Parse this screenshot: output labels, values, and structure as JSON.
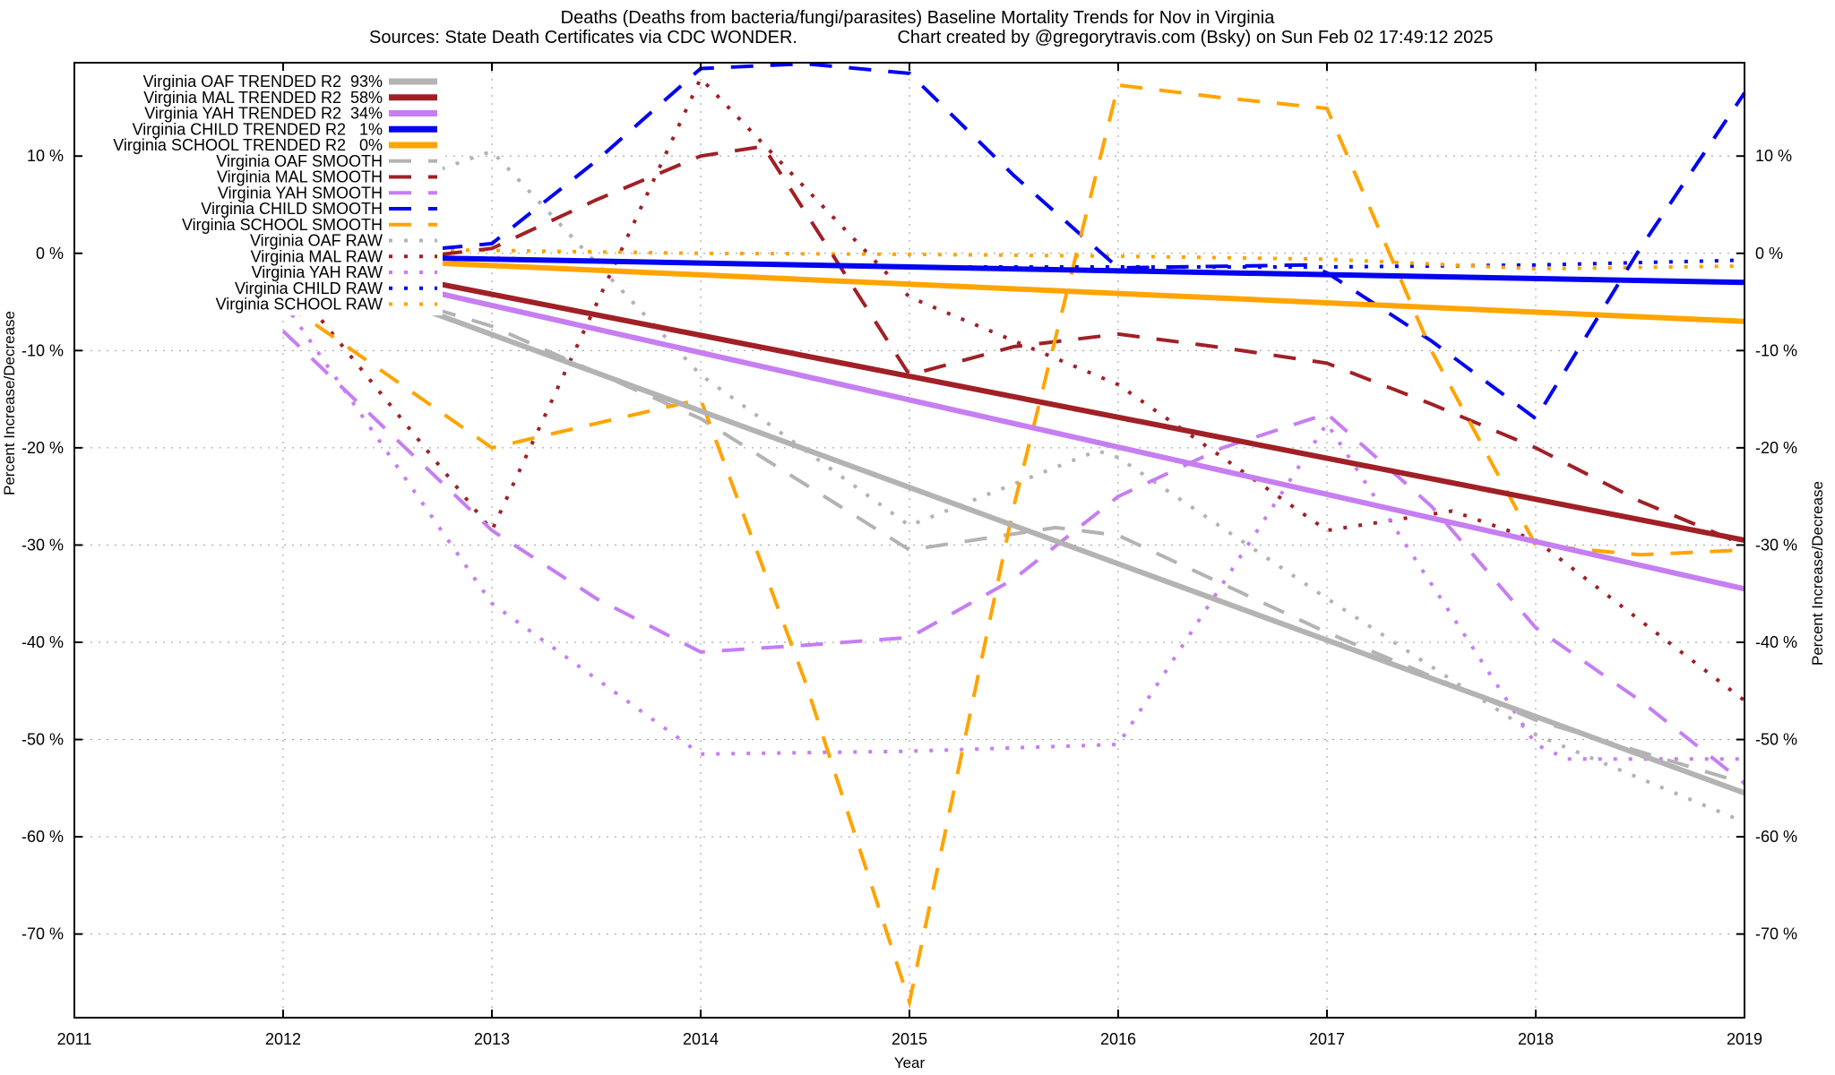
{
  "header": {
    "title": "Deaths (Deaths from bacteria/fungi/parasites)  Baseline Mortality Trends for Nov in Virginia",
    "subtitle_left": "Sources: State Death Certificates via CDC WONDER.",
    "subtitle_right": "Chart created by @gregorytravis.com (Bsky) on Sun Feb 02 17:49:12 2025"
  },
  "chart_data": {
    "type": "line",
    "title": "Deaths (Deaths from bacteria/fungi/parasites)  Baseline Mortality Trends for Nov in Virginia",
    "subtitle_left": "Sources: State Death Certificates via CDC WONDER.",
    "subtitle_right": "Chart created by @gregorytravis.com (Bsky) on Sun Feb 02 17:49:12 2025",
    "xlabel": "Year",
    "ylabel_left": "Percent Increase/Decrease",
    "ylabel_right": "Percent Increase/Decrease",
    "xlim": [
      2011,
      2019
    ],
    "ylim": [
      -78.6,
      19.6
    ],
    "grid": true,
    "legend_position": "top-left-inside",
    "x_ticks": [
      {
        "v": 2011,
        "label": "2011"
      },
      {
        "v": 2012,
        "label": "2012"
      },
      {
        "v": 2013,
        "label": "2013"
      },
      {
        "v": 2014,
        "label": "2014"
      },
      {
        "v": 2015,
        "label": "2015"
      },
      {
        "v": 2016,
        "label": "2016"
      },
      {
        "v": 2017,
        "label": "2017"
      },
      {
        "v": 2018,
        "label": "2018"
      },
      {
        "v": 2019,
        "label": "2019"
      }
    ],
    "y_ticks": [
      {
        "v": 10,
        "label": "10 %"
      },
      {
        "v": 0,
        "label": "0 %"
      },
      {
        "v": -10,
        "label": "-10 %"
      },
      {
        "v": -20,
        "label": "-20 %"
      },
      {
        "v": -30,
        "label": "-30 %"
      },
      {
        "v": -40,
        "label": "-40 %"
      },
      {
        "v": -50,
        "label": "-50 %"
      },
      {
        "v": -60,
        "label": "-60 %"
      },
      {
        "v": -70,
        "label": "-70 %"
      }
    ],
    "colors": {
      "oaf": "#b3b3b3",
      "mal": "#a02026",
      "yah": "#c67ef2",
      "child": "#0404f0",
      "school": "#ffa400"
    },
    "series": [
      {
        "id": "oaf-trended",
        "legend_label": "Virginia OAF TRENDED R2  93%",
        "group": "oaf",
        "style": "trended",
        "r2": "93%",
        "points": [
          [
            2012,
            -0.5
          ],
          [
            2019,
            -55.5
          ]
        ]
      },
      {
        "id": "mal-trended",
        "legend_label": "Virginia MAL TRENDED R2  58%",
        "group": "mal",
        "style": "trended",
        "r2": "58%",
        "points": [
          [
            2012,
            0
          ],
          [
            2019,
            -29.5
          ]
        ]
      },
      {
        "id": "yah-trended",
        "legend_label": "Virginia YAH TRENDED R2  34%",
        "group": "yah",
        "style": "trended",
        "r2": "34%",
        "points": [
          [
            2012,
            -0.5
          ],
          [
            2019,
            -34.5
          ]
        ]
      },
      {
        "id": "child-trended",
        "legend_label": "Virginia CHILD TRENDED R2   1%",
        "group": "child",
        "style": "trended",
        "r2": "1%",
        "points": [
          [
            2012,
            -0.2
          ],
          [
            2019,
            -3
          ]
        ]
      },
      {
        "id": "school-trended",
        "legend_label": "Virginia SCHOOL TRENDED R2   0%",
        "group": "school",
        "style": "trended",
        "r2": "0%",
        "points": [
          [
            2012,
            -0.3
          ],
          [
            2019,
            -7
          ]
        ]
      },
      {
        "id": "oaf-smooth",
        "legend_label": "Virginia OAF SMOOTH",
        "group": "oaf",
        "style": "smooth",
        "points": [
          [
            2012,
            -1
          ],
          [
            2013,
            -7.5
          ],
          [
            2014,
            -17
          ],
          [
            2015,
            -30.5
          ],
          [
            2015.7,
            -28.2
          ],
          [
            2016,
            -29
          ],
          [
            2017,
            -39
          ],
          [
            2018,
            -48
          ],
          [
            2019,
            -54.5
          ]
        ]
      },
      {
        "id": "mal-smooth",
        "legend_label": "Virginia MAL SMOOTH",
        "group": "mal",
        "style": "smooth",
        "points": [
          [
            2012,
            -2
          ],
          [
            2013,
            0.5
          ],
          [
            2013.5,
            5.5
          ],
          [
            2014,
            10
          ],
          [
            2014.3,
            11
          ],
          [
            2015,
            -12.5
          ],
          [
            2015.5,
            -9.6
          ],
          [
            2016,
            -8.3
          ],
          [
            2016.5,
            -9.7
          ],
          [
            2017,
            -11.3
          ],
          [
            2017.5,
            -15.5
          ],
          [
            2018,
            -20
          ],
          [
            2018.5,
            -25.5
          ],
          [
            2019,
            -30
          ]
        ]
      },
      {
        "id": "yah-smooth",
        "legend_label": "Virginia YAH SMOOTH",
        "group": "yah",
        "style": "smooth",
        "points": [
          [
            2012,
            -8
          ],
          [
            2013,
            -28.5
          ],
          [
            2013.5,
            -35.5
          ],
          [
            2014,
            -41
          ],
          [
            2014.5,
            -40.3
          ],
          [
            2015,
            -39.5
          ],
          [
            2015.5,
            -33.5
          ],
          [
            2016,
            -25
          ],
          [
            2016.5,
            -20
          ],
          [
            2017,
            -16.5
          ],
          [
            2017.5,
            -26
          ],
          [
            2018,
            -38.5
          ],
          [
            2018.5,
            -46
          ],
          [
            2019,
            -54.5
          ]
        ]
      },
      {
        "id": "child-smooth",
        "legend_label": "Virginia CHILD SMOOTH",
        "group": "child",
        "style": "smooth",
        "points": [
          [
            2012,
            -1
          ],
          [
            2013,
            1
          ],
          [
            2013.5,
            9.5
          ],
          [
            2014,
            19
          ],
          [
            2014.5,
            19.5
          ],
          [
            2015,
            18.5
          ],
          [
            2015.5,
            8
          ],
          [
            2016,
            -1.5
          ],
          [
            2016.9,
            -1.2
          ],
          [
            2017,
            -2
          ],
          [
            2017.5,
            -9
          ],
          [
            2018,
            -17
          ],
          [
            2018.5,
            0.5
          ],
          [
            2019,
            16.5
          ]
        ]
      },
      {
        "id": "school-smooth",
        "legend_label": "Virginia SCHOOL SMOOTH",
        "group": "school",
        "style": "smooth",
        "points": [
          [
            2012,
            -5
          ],
          [
            2013,
            -20
          ],
          [
            2013.5,
            -17.5
          ],
          [
            2014,
            -15
          ],
          [
            2014.5,
            -44
          ],
          [
            2015,
            -77
          ],
          [
            2015.5,
            -26
          ],
          [
            2016,
            17.3
          ],
          [
            2016.5,
            16
          ],
          [
            2017,
            14.9
          ],
          [
            2017.5,
            -10
          ],
          [
            2018,
            -30
          ],
          [
            2018.5,
            -31
          ],
          [
            2019,
            -30.5
          ]
        ]
      },
      {
        "id": "oaf-raw",
        "legend_label": "Virginia OAF RAW",
        "group": "oaf",
        "style": "raw",
        "points": [
          [
            2012,
            3
          ],
          [
            2013,
            10.5
          ],
          [
            2014,
            -12.5
          ],
          [
            2015,
            -28
          ],
          [
            2015.9,
            -20.3
          ],
          [
            2016,
            -21
          ],
          [
            2017,
            -35.5
          ],
          [
            2018,
            -49.5
          ],
          [
            2019,
            -58.5
          ]
        ]
      },
      {
        "id": "mal-raw",
        "legend_label": "Virginia MAL RAW",
        "group": "mal",
        "style": "raw",
        "points": [
          [
            2012,
            -2
          ],
          [
            2013,
            -28.5
          ],
          [
            2014,
            18
          ],
          [
            2015,
            -4.5
          ],
          [
            2016,
            -13.5
          ],
          [
            2017,
            -28.5
          ],
          [
            2017.6,
            -26.5
          ],
          [
            2018,
            -29.5
          ],
          [
            2019,
            -46
          ]
        ]
      },
      {
        "id": "yah-raw",
        "legend_label": "Virginia YAH RAW",
        "group": "yah",
        "style": "raw",
        "points": [
          [
            2012,
            -5
          ],
          [
            2013,
            -36
          ],
          [
            2014,
            -51.5
          ],
          [
            2015,
            -51.2
          ],
          [
            2016,
            -50.5
          ],
          [
            2017,
            -17.5
          ],
          [
            2018,
            -50.5
          ],
          [
            2018.15,
            -52
          ],
          [
            2019,
            -52
          ]
        ]
      },
      {
        "id": "child-raw",
        "legend_label": "Virginia CHILD RAW",
        "group": "child",
        "style": "raw",
        "points": [
          [
            2012,
            -0.3
          ],
          [
            2013,
            -0.5
          ],
          [
            2014,
            -1
          ],
          [
            2015,
            -1.4
          ],
          [
            2016,
            -1.4
          ],
          [
            2017,
            -1.4
          ],
          [
            2018,
            -1.2
          ],
          [
            2019,
            -0.7
          ]
        ]
      },
      {
        "id": "school-raw",
        "legend_label": "Virginia SCHOOL RAW",
        "group": "school",
        "style": "raw",
        "points": [
          [
            2012,
            0.5
          ],
          [
            2013,
            0.3
          ],
          [
            2014,
            0
          ],
          [
            2015,
            -0.1
          ],
          [
            2016,
            -0.3
          ],
          [
            2017,
            -0.6
          ],
          [
            2018,
            -1.6
          ],
          [
            2019,
            -1.3
          ]
        ]
      }
    ]
  }
}
